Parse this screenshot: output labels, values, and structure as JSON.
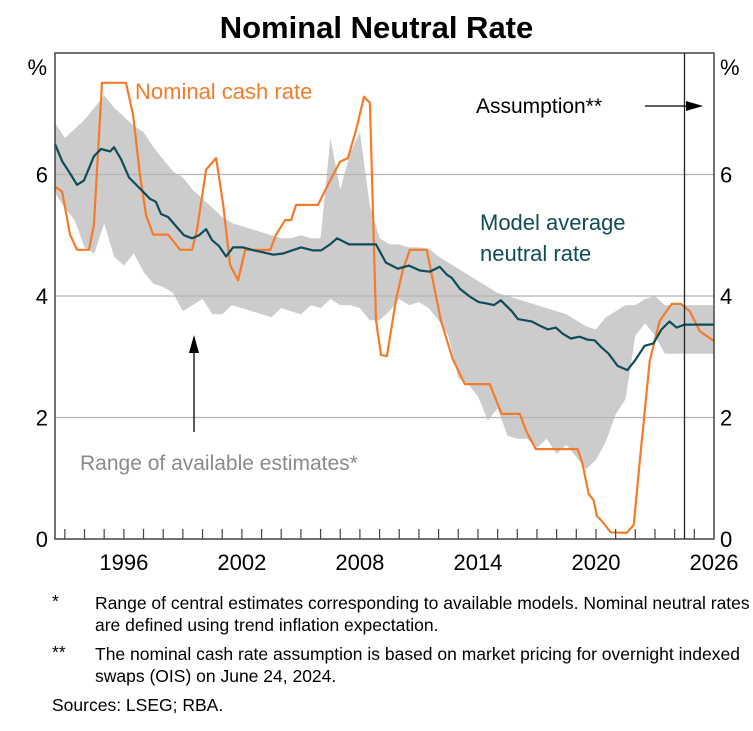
{
  "chart_data": {
    "type": "line",
    "title": "Nominal Neutral Rate",
    "xlabel": "",
    "ylabel": "%",
    "ylabel_right": "%",
    "xlim": [
      1992.5,
      2026
    ],
    "ylim": [
      0,
      8
    ],
    "x_ticks": [
      1996,
      2002,
      2008,
      2014,
      2020,
      2026
    ],
    "x_tick_labels": [
      "1996",
      "2002",
      "2008",
      "2014",
      "2020",
      "2026"
    ],
    "y_ticks": [
      0,
      2,
      4,
      6
    ],
    "y_tick_labels": [
      "0",
      "2",
      "4",
      "6"
    ],
    "grid": true,
    "assumption_start_year": 2024.5,
    "annotations": {
      "cash_rate_label": "Nominal cash rate",
      "model_label_line1": "Model average",
      "model_label_line2": "neutral rate",
      "range_label": "Range of available estimates*",
      "assumption_label": "Assumption**"
    },
    "series": [
      {
        "name": "Nominal cash rate",
        "color": "#f47b2a",
        "x": [
          1992.5,
          1992.86,
          1993.26,
          1993.62,
          1994.23,
          1994.48,
          1994.89,
          1996.11,
          1996.47,
          1996.82,
          1997.13,
          1997.49,
          1998.25,
          1998.86,
          1999.47,
          1999.72,
          2000.18,
          2000.69,
          2001.05,
          2001.4,
          2001.81,
          2002.17,
          2003.44,
          2003.74,
          2004.2,
          2004.5,
          2004.75,
          2005.87,
          2006.38,
          2006.99,
          2007.39,
          2007.8,
          2008.21,
          2008.51,
          2008.82,
          2009.07,
          2009.37,
          2009.83,
          2010.18,
          2010.54,
          2011.4,
          2012.11,
          2012.72,
          2013.33,
          2013.59,
          2014.6,
          2015.21,
          2016.13,
          2016.48,
          2016.94,
          2018.16,
          2019.07,
          2019.32,
          2019.63,
          2019.88,
          2020.04,
          2020.34,
          2020.75,
          2021.56,
          2021.92,
          2022.22,
          2022.73,
          2023.24,
          2023.85,
          2024.31,
          2024.77,
          2025.28,
          2026.0
        ],
        "values": [
          5.8,
          5.72,
          5.01,
          4.76,
          4.76,
          5.17,
          7.51,
          7.51,
          6.98,
          5.99,
          5.33,
          5.01,
          5.01,
          4.76,
          4.76,
          5.09,
          6.08,
          6.27,
          5.5,
          4.51,
          4.26,
          4.76,
          4.76,
          5.01,
          5.25,
          5.25,
          5.5,
          5.5,
          5.83,
          6.21,
          6.27,
          6.73,
          7.28,
          7.18,
          3.6,
          3.03,
          3.01,
          3.93,
          4.43,
          4.76,
          4.76,
          3.6,
          2.96,
          2.55,
          2.55,
          2.55,
          2.06,
          2.06,
          1.76,
          1.48,
          1.48,
          1.48,
          1.23,
          0.74,
          0.64,
          0.38,
          0.28,
          0.11,
          0.1,
          0.23,
          1.25,
          2.93,
          3.59,
          3.87,
          3.87,
          3.75,
          3.42,
          3.26
        ]
      },
      {
        "name": "Model average neutral rate",
        "color": "#0e4c5a",
        "x": [
          1992.5,
          1992.86,
          1993.26,
          1993.62,
          1993.97,
          1994.48,
          1994.84,
          1995.3,
          1995.5,
          1995.86,
          1996.26,
          1996.57,
          1996.97,
          1997.33,
          1997.63,
          1997.89,
          1998.25,
          1998.65,
          1999.06,
          1999.47,
          1999.82,
          2000.18,
          2000.48,
          2000.84,
          2001.2,
          2001.55,
          2002.06,
          2002.62,
          2003.08,
          2003.59,
          2004.1,
          2004.55,
          2005.01,
          2005.62,
          2006.03,
          2006.48,
          2006.84,
          2007.45,
          2008.01,
          2008.41,
          2008.82,
          2009.32,
          2009.93,
          2010.49,
          2011.05,
          2011.55,
          2012.06,
          2012.42,
          2012.67,
          2013.08,
          2013.63,
          2014.04,
          2014.4,
          2014.81,
          2015.16,
          2015.72,
          2016.03,
          2016.38,
          2016.74,
          2017.1,
          2017.55,
          2017.96,
          2018.31,
          2018.72,
          2019.17,
          2019.58,
          2019.93,
          2020.29,
          2020.64,
          2021.1,
          2021.6,
          2022.01,
          2022.47,
          2022.92,
          2023.33,
          2023.74,
          2024.1,
          2024.5,
          2025.28,
          2026.0
        ],
        "values": [
          6.5,
          6.22,
          6.02,
          5.83,
          5.9,
          6.3,
          6.42,
          6.38,
          6.45,
          6.25,
          5.95,
          5.85,
          5.72,
          5.6,
          5.55,
          5.35,
          5.3,
          5.15,
          5.0,
          4.95,
          5.0,
          5.1,
          4.92,
          4.82,
          4.65,
          4.8,
          4.8,
          4.75,
          4.72,
          4.68,
          4.7,
          4.75,
          4.8,
          4.75,
          4.75,
          4.85,
          4.95,
          4.85,
          4.85,
          4.85,
          4.85,
          4.55,
          4.45,
          4.5,
          4.42,
          4.4,
          4.48,
          4.35,
          4.3,
          4.12,
          3.98,
          3.9,
          3.88,
          3.85,
          3.93,
          3.75,
          3.62,
          3.6,
          3.58,
          3.52,
          3.45,
          3.48,
          3.38,
          3.3,
          3.33,
          3.28,
          3.27,
          3.15,
          3.05,
          2.85,
          2.78,
          2.95,
          3.18,
          3.22,
          3.45,
          3.58,
          3.48,
          3.53,
          3.53,
          3.53
        ]
      }
    ],
    "range": {
      "name": "Range of available estimates",
      "color": "#cccccc",
      "x": [
        1992.5,
        1993.0,
        1993.5,
        1994.0,
        1994.5,
        1995.0,
        1995.5,
        1996.0,
        1996.5,
        1997.0,
        1997.5,
        1998.0,
        1998.5,
        1999.0,
        1999.5,
        2000.0,
        2000.5,
        2001.0,
        2001.5,
        2002.0,
        2002.5,
        2003.0,
        2003.5,
        2004.0,
        2004.5,
        2005.0,
        2005.5,
        2006.0,
        2006.5,
        2007.0,
        2007.5,
        2008.0,
        2008.5,
        2009.0,
        2009.5,
        2010.0,
        2010.5,
        2011.0,
        2011.5,
        2012.0,
        2012.5,
        2013.0,
        2013.5,
        2014.0,
        2014.5,
        2015.0,
        2015.5,
        2016.0,
        2016.5,
        2017.0,
        2017.5,
        2018.0,
        2018.5,
        2019.0,
        2019.5,
        2020.0,
        2020.5,
        2021.0,
        2021.5,
        2022.0,
        2022.5,
        2023.0,
        2023.5,
        2024.0,
        2024.5,
        2025.0,
        2025.5,
        2026.0
      ],
      "upper": [
        6.85,
        6.6,
        6.75,
        6.9,
        7.1,
        7.3,
        7.1,
        6.95,
        6.8,
        6.7,
        6.45,
        6.25,
        6.05,
        5.95,
        5.75,
        5.6,
        5.45,
        5.3,
        5.2,
        5.15,
        5.1,
        5.05,
        5.0,
        4.95,
        4.95,
        5.0,
        4.95,
        4.95,
        6.6,
        5.75,
        6.35,
        6.7,
        5.5,
        4.95,
        4.85,
        4.85,
        4.8,
        4.8,
        4.78,
        4.65,
        4.55,
        4.45,
        4.35,
        4.25,
        4.15,
        4.05,
        4.0,
        3.95,
        3.9,
        3.85,
        3.8,
        3.75,
        3.7,
        3.6,
        3.5,
        3.45,
        3.65,
        3.75,
        3.85,
        3.85,
        3.95,
        4.0,
        3.85,
        3.85,
        3.85,
        3.85,
        3.85,
        3.85
      ],
      "lower": [
        5.7,
        5.45,
        5.25,
        4.8,
        4.7,
        5.2,
        4.65,
        4.5,
        4.7,
        4.4,
        4.2,
        4.15,
        4.05,
        3.75,
        3.85,
        3.95,
        3.7,
        3.7,
        3.85,
        3.8,
        3.75,
        3.7,
        3.65,
        3.8,
        3.75,
        3.7,
        3.85,
        3.8,
        3.95,
        3.85,
        3.85,
        3.8,
        3.6,
        3.6,
        3.75,
        3.95,
        3.85,
        3.9,
        3.8,
        3.6,
        3.35,
        2.65,
        2.55,
        2.35,
        1.95,
        2.15,
        1.7,
        1.65,
        1.65,
        1.5,
        1.65,
        1.4,
        1.55,
        1.35,
        1.15,
        1.3,
        1.6,
        2.05,
        2.3,
        3.35,
        3.55,
        3.35,
        3.05,
        3.05,
        3.05,
        3.05,
        3.05,
        3.05
      ]
    }
  },
  "footnotes": [
    {
      "mark": "*",
      "text": "Range of central estimates corresponding to available models. Nominal neutral rates are defined using trend inflation expectation."
    },
    {
      "mark": "**",
      "text": "The nominal cash rate assumption is based on market pricing for overnight indexed swaps (OIS) on June 24, 2024."
    }
  ],
  "sources": "Sources: LSEG; RBA."
}
